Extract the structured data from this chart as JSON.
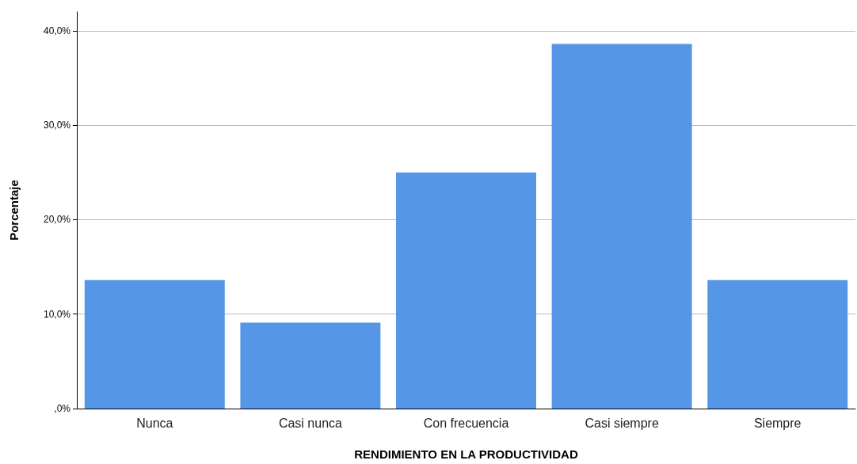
{
  "chart_data": {
    "type": "bar",
    "xlabel": "RENDIMIENTO EN LA PRODUCTIVIDAD",
    "ylabel": "Porcentaje",
    "categories": [
      "Nunca",
      "Casi nunca",
      "Con frecuencia",
      "Casi siempre",
      "Siempre"
    ],
    "values": [
      13.6,
      9.1,
      25.0,
      38.6,
      13.6
    ],
    "color": "#5596e6",
    "ylim": [
      0,
      42
    ],
    "yticks": [
      {
        "value": 0,
        "label": ",0%"
      },
      {
        "value": 10,
        "label": "10,0%"
      },
      {
        "value": 20,
        "label": "20,0%"
      },
      {
        "value": 30,
        "label": "30,0%"
      },
      {
        "value": 40,
        "label": "40,0%"
      }
    ],
    "grid": "y"
  }
}
